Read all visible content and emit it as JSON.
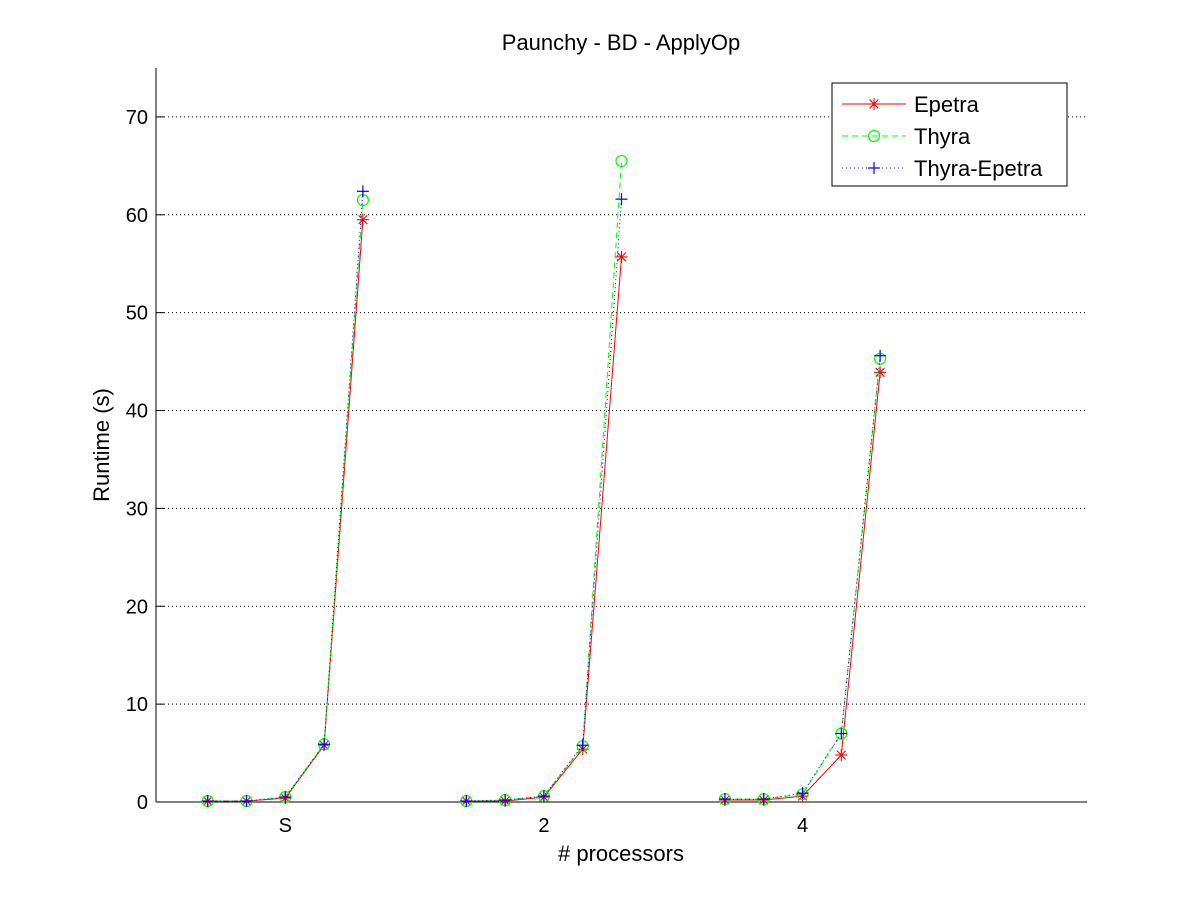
{
  "chart_data": {
    "type": "line",
    "title": "Paunchy - BD - ApplyOp",
    "xlabel": "# processors",
    "ylabel": "Runtime (s)",
    "xlim": [
      0.5,
      9.5
    ],
    "ylim": [
      0,
      75
    ],
    "x": [
      1,
      1.375,
      1.75,
      2.125,
      2.5,
      3.5,
      3.875,
      4.25,
      4.625,
      5,
      6,
      6.375,
      6.75,
      7.125,
      7.5
    ],
    "x_ticks": [
      {
        "value": 1.75,
        "label": "S"
      },
      {
        "value": 4.25,
        "label": "2"
      },
      {
        "value": 6.75,
        "label": "4"
      }
    ],
    "y_ticks": [
      0,
      10,
      20,
      30,
      40,
      50,
      60,
      70
    ],
    "grid": "y-dotted",
    "legend": "top-right",
    "groups": [
      {
        "label": "S",
        "indices": [
          0,
          1,
          2,
          3,
          4
        ]
      },
      {
        "label": "2",
        "indices": [
          5,
          6,
          7,
          8,
          9
        ]
      },
      {
        "label": "4",
        "indices": [
          10,
          11,
          12,
          13,
          14
        ]
      }
    ],
    "series": [
      {
        "name": "Epetra",
        "color": "#ff0000",
        "line": "solid",
        "marker": "asterisk",
        "values": [
          0.1,
          0.1,
          0.4,
          5.8,
          59.5,
          0.1,
          0.1,
          0.5,
          5.4,
          55.7,
          0.2,
          0.2,
          0.6,
          4.8,
          43.9
        ]
      },
      {
        "name": "Thyra",
        "color": "#00ff00",
        "line": "dashed",
        "marker": "circle",
        "values": [
          0.1,
          0.1,
          0.5,
          5.9,
          61.5,
          0.1,
          0.2,
          0.6,
          5.7,
          65.5,
          0.3,
          0.3,
          0.8,
          7.0,
          45.3
        ]
      },
      {
        "name": "Thyra-Epetra",
        "color": "#0000ff",
        "line": "dotted",
        "marker": "plus",
        "values": [
          0.1,
          0.1,
          0.5,
          5.9,
          62.4,
          0.1,
          0.2,
          0.6,
          5.8,
          61.6,
          0.3,
          0.3,
          0.9,
          7.0,
          45.6
        ]
      }
    ]
  }
}
